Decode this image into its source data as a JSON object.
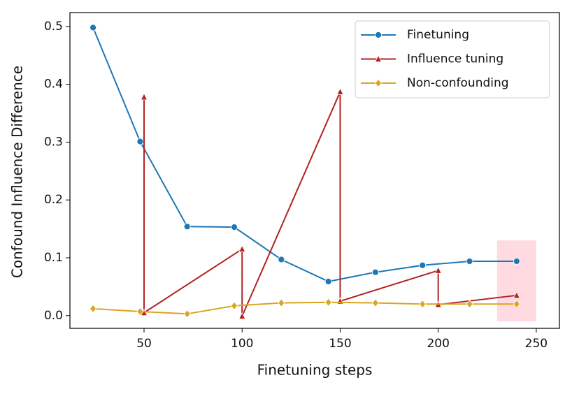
{
  "chart_data": {
    "type": "line",
    "x_label": "Finetuning steps",
    "y_label": "Confound Influence Difference",
    "xlim": [
      12.2,
      261.8
    ],
    "ylim": [
      -0.022,
      0.524
    ],
    "xticks": [
      50,
      100,
      150,
      200,
      250
    ],
    "yticks": [
      {
        "value": 0,
        "label": "0.0"
      },
      0.1,
      0.2,
      0.3,
      0.4,
      0.5
    ],
    "legend": "upper right",
    "shaded_region": {
      "color": "#ffb6c1",
      "x": [
        230,
        250
      ],
      "y": [
        -0.01,
        0.13
      ]
    },
    "series": [
      {
        "name": "Finetuning",
        "color": "#1f77b4",
        "marker": "circle",
        "x": [
          24,
          48,
          72,
          96,
          120,
          144,
          168,
          192,
          216,
          240
        ],
        "values": [
          0.498,
          0.301,
          0.154,
          0.153,
          0.097,
          0.059,
          0.075,
          0.087,
          0.094,
          0.094
        ]
      },
      {
        "name": "Influence tuning",
        "color": "#b22222",
        "marker": "triangle",
        "x": [
          50,
          50,
          100,
          100,
          150,
          150,
          200,
          200,
          240
        ],
        "values": [
          0.378,
          0.005,
          0.115,
          -0.001,
          0.387,
          0.025,
          0.078,
          0.019,
          0.035
        ]
      },
      {
        "name": "Non-confounding",
        "color": "#daa520",
        "marker": "diamond",
        "x": [
          24,
          48,
          72,
          96,
          120,
          144,
          168,
          192,
          216,
          240
        ],
        "values": [
          0.012,
          0.007,
          0.003,
          0.017,
          0.022,
          0.023,
          0.022,
          0.02,
          0.02,
          0.02
        ]
      }
    ]
  }
}
